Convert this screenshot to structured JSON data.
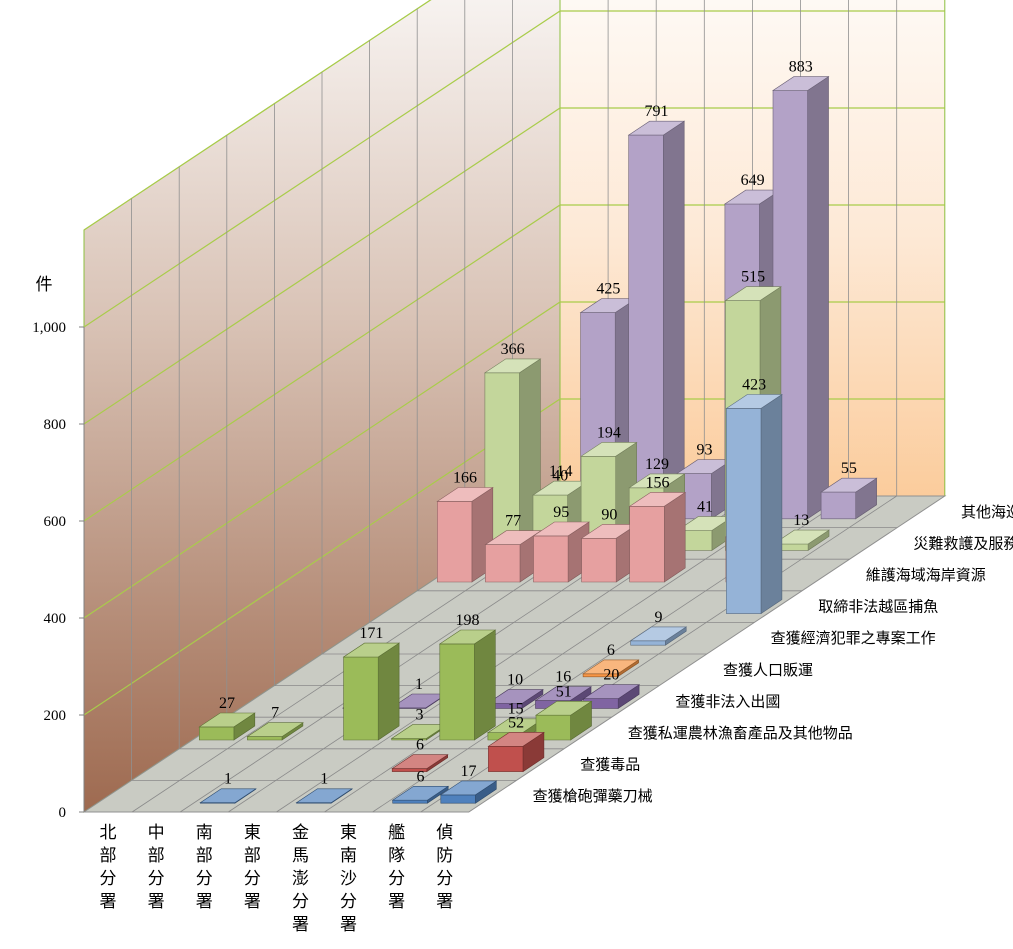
{
  "chart_data": {
    "type": "bar",
    "title": "",
    "xlabel": "",
    "ylabel": "件",
    "ylim": [
      0,
      1000
    ],
    "y_ticks": [
      "0",
      "200",
      "400",
      "600",
      "800",
      "1,000"
    ],
    "categories": [
      "北部分署",
      "中部分署",
      "南部分署",
      "東部分署",
      "金馬澎分署",
      "東南沙分署",
      "艦隊分署",
      "偵防分署"
    ],
    "series": [
      {
        "name": "查獲槍砲彈藥刀械",
        "color": "#4f81bd",
        "values": [
          null,
          null,
          1,
          null,
          1,
          null,
          6,
          17
        ]
      },
      {
        "name": "查獲毒品",
        "color": "#c0504d",
        "values": [
          null,
          null,
          null,
          null,
          null,
          6,
          null,
          52
        ]
      },
      {
        "name": "查獲私運農林漁畜產品及其他物品",
        "color": "#9bbb59",
        "values": [
          27,
          7,
          null,
          171,
          3,
          198,
          15,
          51
        ]
      },
      {
        "name": "查獲非法入出國",
        "color": "#8064a2",
        "values": [
          null,
          null,
          1,
          1,
          null,
          10,
          16,
          20
        ]
      },
      {
        "name": "查獲人口販運",
        "color": "#f79646",
        "values": [
          null,
          null,
          null,
          null,
          null,
          null,
          6,
          null
        ]
      },
      {
        "name": "查獲經濟犯罪之專案工作",
        "color": "#95b3d7",
        "values": [
          null,
          null,
          null,
          null,
          null,
          null,
          9,
          null
        ]
      },
      {
        "name": "取締非法越區捕魚",
        "color": "#95b3d7",
        "values": [
          null,
          null,
          null,
          null,
          null,
          null,
          null,
          423
        ]
      },
      {
        "name": "維護海域海岸資源",
        "color": "#e6a0a0",
        "values": [
          166,
          77,
          95,
          90,
          156,
          null,
          93,
          null
        ]
      },
      {
        "name": "災難救護及服務工作",
        "color": "#c3d69b",
        "values": [
          366,
          114,
          194,
          129,
          41,
          515,
          13,
          null
        ]
      },
      {
        "name": "其他海巡績效",
        "color": "#b3a2c7",
        "values": [
          40,
          425,
          791,
          93,
          649,
          883,
          55,
          null
        ]
      }
    ]
  }
}
